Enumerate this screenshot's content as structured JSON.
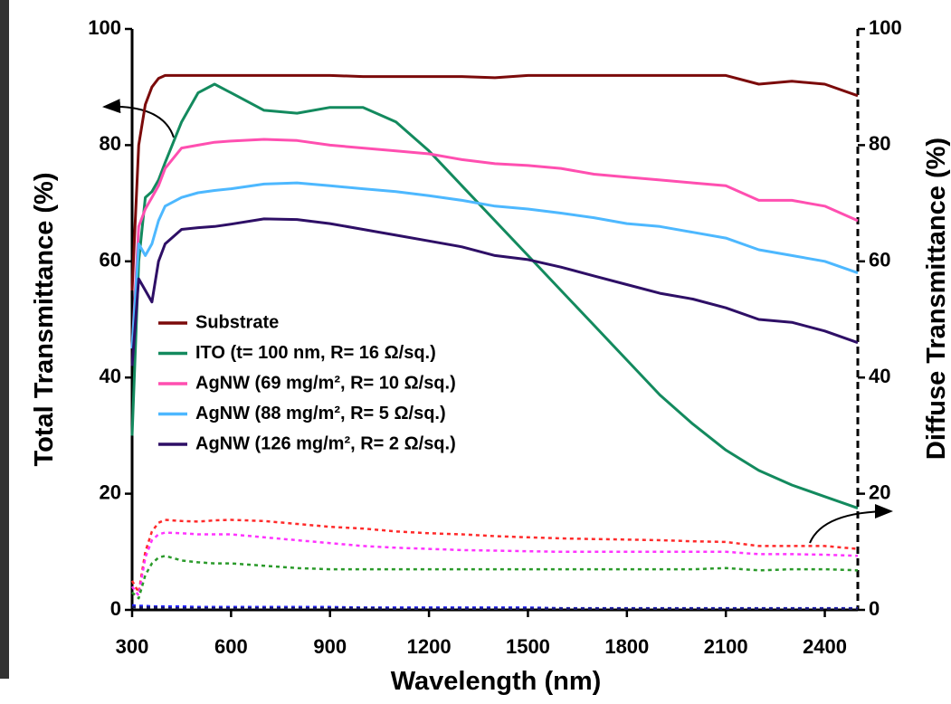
{
  "chart_data": {
    "type": "line",
    "x_label": "Wavelength (nm)",
    "y_label": "Total Transmittance (%)",
    "y2_label": "Diffuse Transmittance (%)",
    "x": [
      300,
      320,
      340,
      360,
      380,
      400,
      450,
      500,
      550,
      600,
      700,
      800,
      900,
      1000,
      1100,
      1200,
      1300,
      1400,
      1500,
      1600,
      1700,
      1800,
      1900,
      2000,
      2100,
      2200,
      2300,
      2400,
      2500
    ],
    "xlim": [
      300,
      2500
    ],
    "xticks": [
      300,
      600,
      900,
      1200,
      1500,
      1800,
      2100,
      2400
    ],
    "ylim": [
      0,
      100
    ],
    "yticks": [
      0,
      20,
      40,
      60,
      80,
      100
    ],
    "y2lim": [
      0,
      100
    ],
    "y2ticks": [
      0,
      20,
      40,
      60,
      80,
      100
    ],
    "series": [
      {
        "name": "Substrate",
        "color": "#7b0a0a",
        "style": "solid",
        "values": [
          55,
          80,
          87,
          90,
          91.5,
          92,
          92,
          92,
          92,
          92,
          92,
          92,
          92,
          91.8,
          91.8,
          91.8,
          91.8,
          91.6,
          92,
          92,
          92,
          92,
          92,
          92,
          92,
          90.5,
          91,
          90.5,
          88.5
        ]
      },
      {
        "name": "ITO (t= 100 nm, R= 16 Ω/sq.)",
        "color": "#138a5e",
        "style": "solid",
        "values": [
          30,
          60,
          71,
          72,
          74,
          77,
          84,
          89,
          90.5,
          89,
          86,
          85.5,
          86.5,
          86.5,
          84,
          79,
          73,
          67,
          61,
          55,
          49,
          43,
          37,
          32,
          27.5,
          24,
          21.5,
          19.5,
          17.5
        ]
      },
      {
        "name": "AgNW (69 mg/m², R= 10 Ω/sq.)",
        "color": "#ff4fb0",
        "style": "solid",
        "values": [
          45,
          66,
          69,
          71,
          73,
          76,
          79.5,
          80,
          80.5,
          80.7,
          81,
          80.8,
          80,
          79.5,
          79,
          78.5,
          77.5,
          76.8,
          76.5,
          76,
          75,
          74.5,
          74,
          73.5,
          73,
          70.5,
          70.5,
          69.5,
          67
        ]
      },
      {
        "name": "AgNW (88 mg/m², R= 5 Ω/sq.)",
        "color": "#4db8ff",
        "style": "solid",
        "values": [
          45,
          63,
          61,
          63,
          67,
          69.5,
          71,
          71.8,
          72.2,
          72.5,
          73.3,
          73.5,
          73,
          72.5,
          72,
          71.3,
          70.5,
          69.5,
          69,
          68.3,
          67.5,
          66.5,
          66,
          65,
          64,
          62,
          61,
          60,
          58
        ]
      },
      {
        "name": "AgNW (126 mg/m², R= 2 Ω/sq.)",
        "color": "#2e0f66",
        "style": "solid",
        "values": [
          42,
          57,
          55,
          53,
          60,
          63,
          65.5,
          65.8,
          66,
          66.4,
          67.3,
          67.2,
          66.5,
          65.5,
          64.5,
          63.5,
          62.5,
          61,
          60.3,
          59,
          57.5,
          56,
          54.5,
          53.5,
          52,
          50,
          49.5,
          48,
          46
        ]
      },
      {
        "color": "#ff2a2a",
        "style": "dotted",
        "axis": "y2",
        "values": [
          5,
          3,
          10,
          13.5,
          15,
          15.5,
          15.3,
          15.2,
          15.4,
          15.5,
          15.3,
          14.8,
          14.3,
          14,
          13.5,
          13.2,
          13,
          12.7,
          12.5,
          12.3,
          12.2,
          12.1,
          12,
          11.8,
          11.7,
          11,
          11,
          11,
          10.5
        ]
      },
      {
        "color": "#ff33ff",
        "style": "dotted",
        "axis": "y2",
        "values": [
          4,
          2.5,
          9,
          12,
          13,
          13.3,
          13.2,
          13,
          13,
          13,
          12.5,
          12,
          11.5,
          11,
          10.7,
          10.5,
          10.3,
          10.2,
          10.1,
          10,
          10,
          10,
          10,
          10,
          10,
          9.6,
          9.6,
          9.5,
          9.3
        ]
      },
      {
        "color": "#2a9a2a",
        "style": "dotted",
        "axis": "y2",
        "values": [
          3,
          2,
          6,
          8,
          9,
          9.3,
          8.5,
          8.2,
          8,
          8,
          7.6,
          7.2,
          7,
          7,
          7,
          7,
          7,
          7,
          7,
          7,
          7,
          7,
          7,
          7,
          7.2,
          6.8,
          7,
          7,
          6.8
        ]
      },
      {
        "color": "#2222ff",
        "style": "dotted",
        "axis": "y2",
        "values": [
          0.8,
          0.7,
          0.7,
          0.6,
          0.6,
          0.6,
          0.6,
          0.5,
          0.5,
          0.5,
          0.5,
          0.5,
          0.5,
          0.4,
          0.4,
          0.4,
          0.4,
          0.4,
          0.4,
          0.3,
          0.3,
          0.3,
          0.3,
          0.3,
          0.3,
          0.3,
          0.3,
          0.3,
          0.3
        ]
      },
      {
        "color": "#1a1a60",
        "style": "dotted",
        "axis": "y2",
        "values": [
          0.5,
          0.4,
          0.4,
          0.4,
          0.4,
          0.3,
          0.3,
          0.3,
          0.3,
          0.3,
          0.3,
          0.3,
          0.3,
          0.3,
          0.2,
          0.2,
          0.2,
          0.2,
          0.2,
          0.2,
          0.2,
          0.2,
          0.2,
          0.2,
          0.2,
          0.2,
          0.2,
          0.2,
          0.2
        ]
      }
    ]
  }
}
